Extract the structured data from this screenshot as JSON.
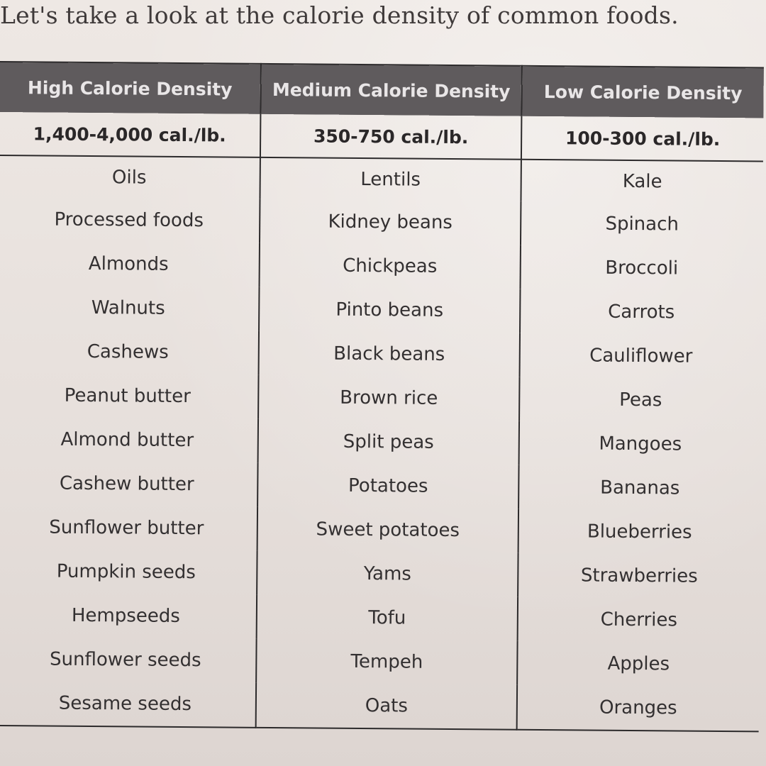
{
  "intro_text": "Let's take a look at the calorie density of common foods.",
  "table": {
    "headers": [
      "High Calorie Density",
      "Medium Calorie Density",
      "Low Calorie Density"
    ],
    "ranges": [
      "1,400-4,000 cal./lb.",
      "350-750 cal./lb.",
      "100-300 cal./lb."
    ],
    "rows": [
      [
        "Oils",
        "Lentils",
        "Kale"
      ],
      [
        "Processed foods",
        "Kidney beans",
        "Spinach"
      ],
      [
        "Almonds",
        "Chickpeas",
        "Broccoli"
      ],
      [
        "Walnuts",
        "Pinto beans",
        "Carrots"
      ],
      [
        "Cashews",
        "Black beans",
        "Cauliflower"
      ],
      [
        "Peanut butter",
        "Brown rice",
        "Peas"
      ],
      [
        "Almond butter",
        "Split peas",
        "Mangoes"
      ],
      [
        "Cashew butter",
        "Potatoes",
        "Bananas"
      ],
      [
        "Sunflower butter",
        "Sweet potatoes",
        "Blueberries"
      ],
      [
        "Pumpkin seeds",
        "Yams",
        "Strawberries"
      ],
      [
        "Hempseeds",
        "Tofu",
        "Cherries"
      ],
      [
        "Sunflower seeds",
        "Tempeh",
        "Apples"
      ],
      [
        "Sesame seeds",
        "Oats",
        "Oranges"
      ]
    ]
  },
  "colors": {
    "header_background": "#5f5b5d",
    "header_text": "#e9e6e7",
    "paper": "#e9e3df",
    "ink": "#2f2b2c"
  }
}
